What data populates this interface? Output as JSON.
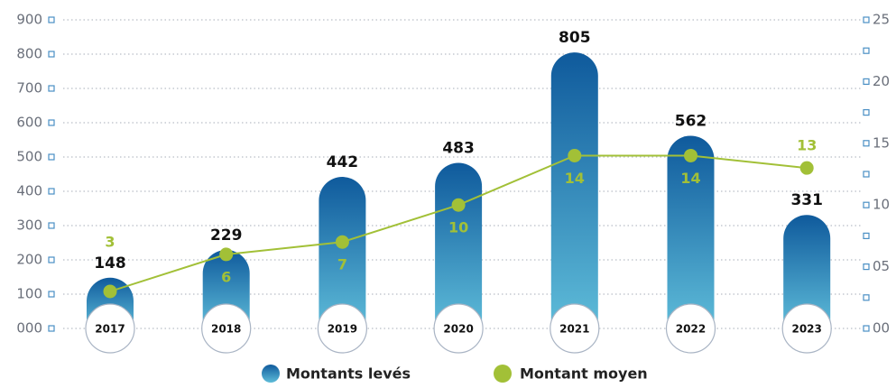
{
  "chart_data": {
    "type": "bar-line",
    "categories": [
      "2017",
      "2018",
      "2019",
      "2020",
      "2021",
      "2022",
      "2023"
    ],
    "series": [
      {
        "name": "Montants levés",
        "type": "bar",
        "color": "#0f5a9c",
        "color2": "#5ebcd9",
        "values": [
          148,
          229,
          442,
          483,
          805,
          562,
          331
        ]
      },
      {
        "name": "Montant moyen",
        "type": "line",
        "axis": "y2",
        "color": "#a2c037",
        "values": [
          3,
          6,
          7,
          10,
          14,
          14,
          13
        ]
      }
    ],
    "ylim": [
      0,
      900
    ],
    "yticks": [
      {
        "value": 0,
        "label": "000"
      },
      100,
      200,
      300,
      400,
      500,
      600,
      700,
      800,
      900
    ],
    "y2lim": [
      0,
      25
    ],
    "y2ticks": [
      {
        "value": 0,
        "label": "00"
      },
      {
        "value": 5,
        "label": "05"
      },
      10,
      15,
      20,
      25
    ],
    "grid": true,
    "legend": "bottom"
  }
}
